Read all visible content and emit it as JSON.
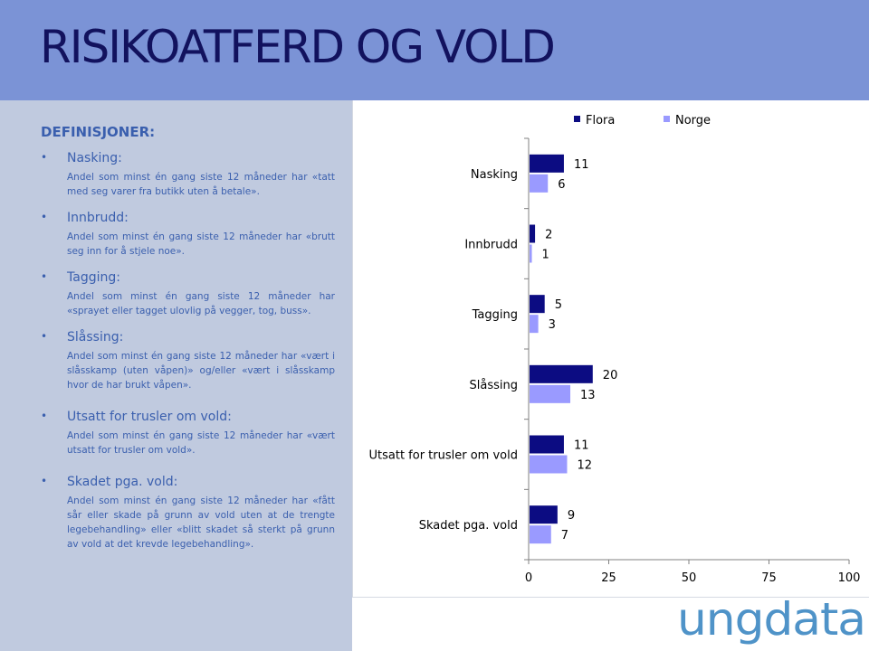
{
  "slide": {
    "title": "RISIKOATFERD OG VOLD",
    "definitions_heading": "DEFINISJONER:",
    "bullet_glyph": "•",
    "definitions": [
      {
        "term": "Nasking:",
        "description": "Andel som minst én gang siste 12 måneder har «tatt med seg varer fra butikk uten å betale»."
      },
      {
        "term": "Innbrudd:",
        "description": "Andel som minst én gang siste 12 måneder har «brutt seg inn for å stjele noe»."
      },
      {
        "term": "Tagging:",
        "description": "Andel som minst én gang siste 12 måneder har «sprayet eller tagget ulovlig på vegger, tog, buss»."
      },
      {
        "term": "Slåssing:",
        "description": "Andel som minst én gang siste 12 måneder har «vært i slåsskamp (uten våpen)» og/eller «vært i slåsskamp hvor de har brukt våpen»."
      },
      {
        "term": "Utsatt for trusler om vold:",
        "description": "Andel som minst én gang siste 12 måneder har «vært utsatt for trusler om vold»."
      },
      {
        "term": "Skadet pga. vold:",
        "description": "Andel som minst én gang siste 12 måneder har «fått sår eller skade på grunn av vold uten at de trengte legebehandling» eller «blitt skadet så sterkt på grunn av vold at det krevde legebehandling»."
      }
    ],
    "logo_text": "ungdata"
  },
  "colors": {
    "header_band": "#7b93d6",
    "title_text": "#12125e",
    "left_panel": "#c0cadf",
    "definition_text": "#3a5fae",
    "logo": "#4f93c8"
  },
  "chart_data": {
    "type": "bar",
    "orientation": "horizontal",
    "categories": [
      "Nasking",
      "Innbrudd",
      "Tagging",
      "Slåssing",
      "Utsatt for trusler om vold",
      "Skadet pga. vold"
    ],
    "series": [
      {
        "name": "Flora",
        "color": "#0c0c82",
        "values": [
          11,
          2,
          5,
          20,
          11,
          9
        ]
      },
      {
        "name": "Norge",
        "color": "#9a9aff",
        "values": [
          6,
          1,
          3,
          13,
          12,
          7
        ]
      }
    ],
    "xlim": [
      0,
      100
    ],
    "xticks": [
      0,
      25,
      50,
      75,
      100
    ],
    "grid": false,
    "legend_position": "top",
    "data_labels": true
  }
}
